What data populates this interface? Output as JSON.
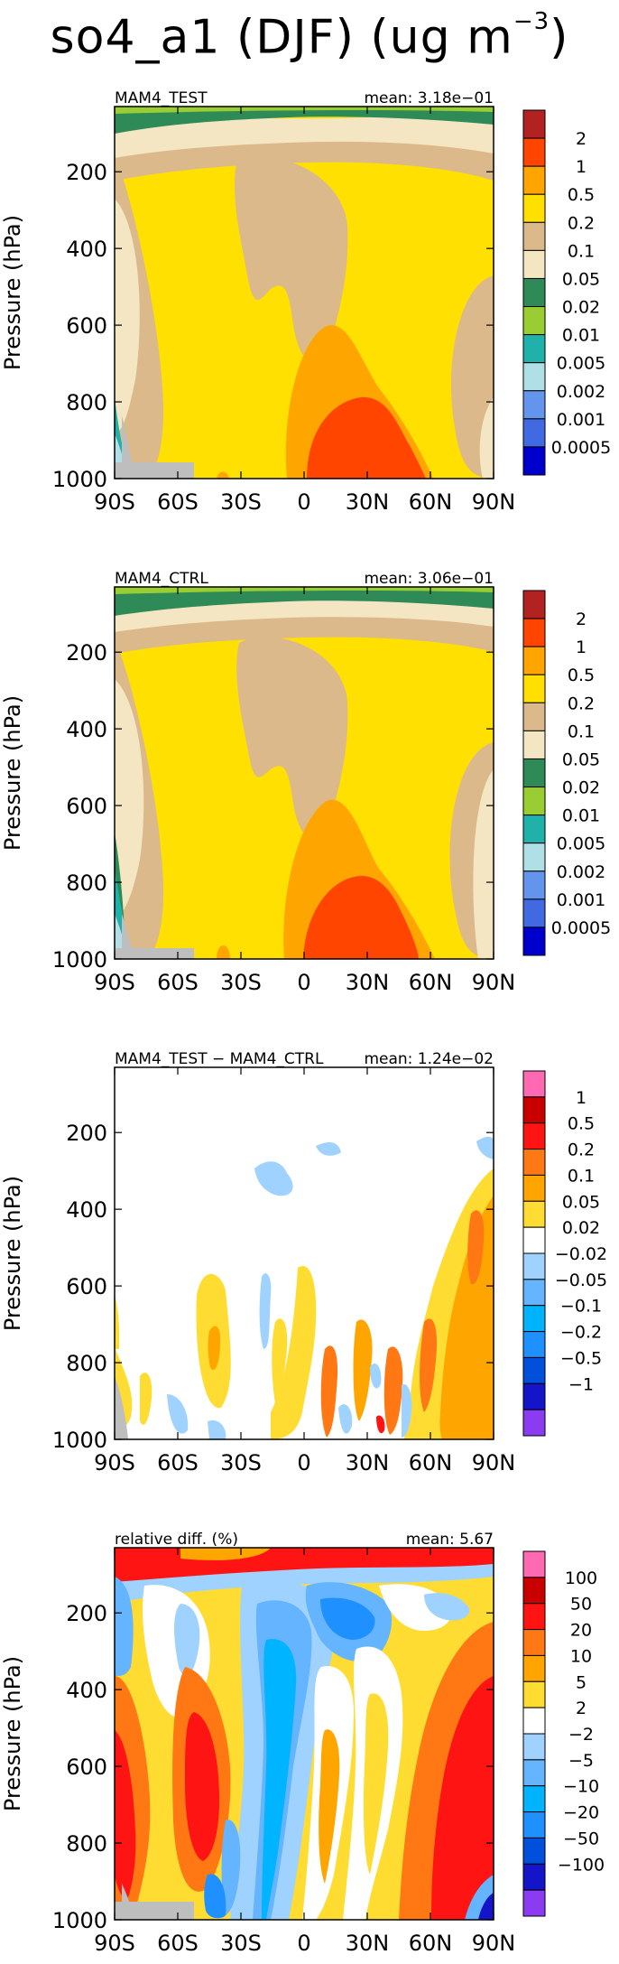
{
  "title": {
    "prefix": "so4_a1 (DJF) (ug m",
    "exponent": "−3",
    "suffix": ")"
  },
  "chart_data": [
    {
      "type": "heatmap",
      "title": "MAM4_TEST",
      "mean_label": "mean: 3.18e−01",
      "ylabel": "Pressure (hPa)",
      "xticks": [
        "90S",
        "60S",
        "30S",
        "0",
        "30N",
        "60N",
        "90N"
      ],
      "yticks": [
        "200",
        "400",
        "600",
        "800",
        "1000"
      ],
      "xlim": [
        -90,
        90
      ],
      "ylim": [
        1000,
        30
      ],
      "colorbar_labels": [
        "2",
        "1",
        "0.5",
        "0.2",
        "0.1",
        "0.05",
        "0.02",
        "0.01",
        "0.005",
        "0.002",
        "0.001",
        "0.0005"
      ],
      "colorbar_colors": [
        "#b22222",
        "#ff4500",
        "#ffa500",
        "#ffe000",
        "#dcb98a",
        "#f5e6c3",
        "#2e8b57",
        "#9acd32",
        "#20b2aa",
        "#b0e0e6",
        "#6495ed",
        "#4169e1",
        "#0000cd"
      ]
    },
    {
      "type": "heatmap",
      "title": "MAM4_CTRL",
      "mean_label": "mean: 3.06e−01",
      "ylabel": "Pressure (hPa)",
      "xticks": [
        "90S",
        "60S",
        "30S",
        "0",
        "30N",
        "60N",
        "90N"
      ],
      "yticks": [
        "200",
        "400",
        "600",
        "800",
        "1000"
      ],
      "xlim": [
        -90,
        90
      ],
      "ylim": [
        1000,
        30
      ],
      "colorbar_labels": [
        "2",
        "1",
        "0.5",
        "0.2",
        "0.1",
        "0.05",
        "0.02",
        "0.01",
        "0.005",
        "0.002",
        "0.001",
        "0.0005"
      ],
      "colorbar_colors": [
        "#b22222",
        "#ff4500",
        "#ffa500",
        "#ffe000",
        "#dcb98a",
        "#f5e6c3",
        "#2e8b57",
        "#9acd32",
        "#20b2aa",
        "#b0e0e6",
        "#6495ed",
        "#4169e1",
        "#0000cd"
      ]
    },
    {
      "type": "heatmap",
      "title": "MAM4_TEST − MAM4_CTRL",
      "mean_label": "mean: 1.24e−02",
      "ylabel": "Pressure (hPa)",
      "xticks": [
        "90S",
        "60S",
        "30S",
        "0",
        "30N",
        "60N",
        "90N"
      ],
      "yticks": [
        "200",
        "400",
        "600",
        "800",
        "1000"
      ],
      "xlim": [
        -90,
        90
      ],
      "ylim": [
        1000,
        30
      ],
      "colorbar_labels": [
        "1",
        "0.5",
        "0.2",
        "0.1",
        "0.05",
        "0.02",
        "−0.02",
        "−0.05",
        "−0.1",
        "−0.2",
        "−0.5",
        "−1"
      ],
      "colorbar_colors": [
        "#ff69b4",
        "#c80000",
        "#ff1414",
        "#ff7814",
        "#ffa500",
        "#ffdc32",
        "#ffffff",
        "#a0d2ff",
        "#64b4ff",
        "#00b4ff",
        "#1e90ff",
        "#0050dc",
        "#1414c8",
        "#8c3cf0"
      ]
    },
    {
      "type": "heatmap",
      "title": "relative diff. (%)",
      "mean_label": "mean:  5.67",
      "ylabel": "Pressure (hPa)",
      "xticks": [
        "90S",
        "60S",
        "30S",
        "0",
        "30N",
        "60N",
        "90N"
      ],
      "yticks": [
        "200",
        "400",
        "600",
        "800",
        "1000"
      ],
      "xlim": [
        -90,
        90
      ],
      "ylim": [
        1000,
        30
      ],
      "colorbar_labels": [
        "100",
        "50",
        "20",
        "10",
        "5",
        "2",
        "−2",
        "−5",
        "−10",
        "−20",
        "−50",
        "−100"
      ],
      "colorbar_colors": [
        "#ff69b4",
        "#c80000",
        "#ff1414",
        "#ff7814",
        "#ffa500",
        "#ffdc32",
        "#ffffff",
        "#a0d2ff",
        "#64b4ff",
        "#00b4ff",
        "#1e90ff",
        "#0050dc",
        "#1414c8",
        "#8c3cf0"
      ]
    }
  ]
}
